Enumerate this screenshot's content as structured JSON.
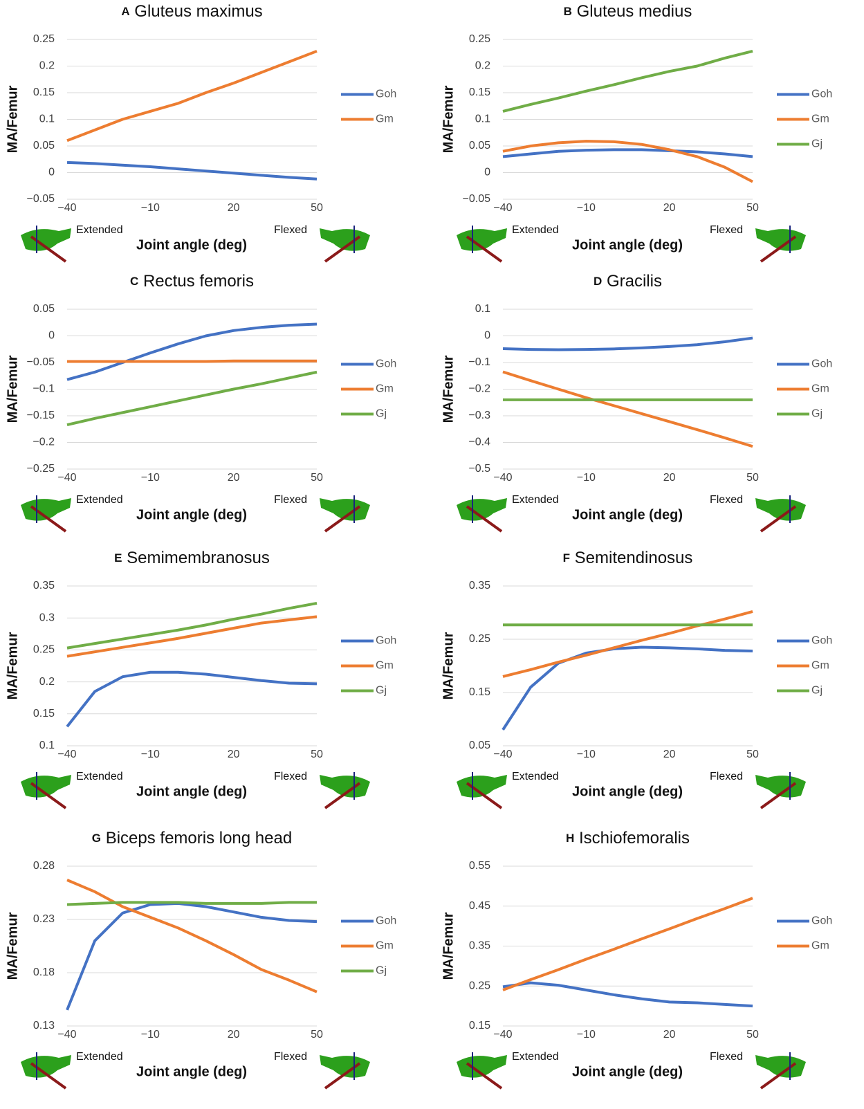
{
  "chart_data": [
    {
      "type": "line",
      "label": "A",
      "title": "Gluteus maximus",
      "xlabel": "Joint angle (deg)",
      "ylabel": "MA/Femur",
      "annotations": [
        "Extended",
        "Flexed"
      ],
      "grid": true,
      "x": [
        -40,
        -30,
        -20,
        -10,
        0,
        10,
        20,
        30,
        40,
        50
      ],
      "xlim": [
        -40,
        50
      ],
      "xticks": [
        {
          "value": -40,
          "label": "−40"
        },
        {
          "value": -10,
          "label": "−10"
        },
        20,
        50
      ],
      "ylim": [
        -0.05,
        0.25
      ],
      "yticks": [
        {
          "value": -0.05,
          "label": "−0.05"
        },
        0,
        0.05,
        0.1,
        0.15,
        0.2,
        0.25
      ],
      "series": [
        {
          "name": "Goh",
          "color": "#4472c4",
          "values": [
            0.019,
            0.017,
            0.014,
            0.011,
            0.007,
            0.003,
            -0.001,
            -0.005,
            -0.009,
            -0.012
          ]
        },
        {
          "name": "Gm",
          "color": "#ed7d31",
          "values": [
            0.06,
            0.08,
            0.1,
            0.115,
            0.13,
            0.15,
            0.168,
            0.188,
            0.208,
            0.228
          ]
        }
      ]
    },
    {
      "type": "line",
      "label": "B",
      "title": "Gluteus medius",
      "xlabel": "Joint angle (deg)",
      "ylabel": "MA/Femur",
      "annotations": [
        "Extended",
        "Flexed"
      ],
      "grid": true,
      "x": [
        -40,
        -30,
        -20,
        -10,
        0,
        10,
        20,
        30,
        40,
        50
      ],
      "xlim": [
        -40,
        50
      ],
      "xticks": [
        {
          "value": -40,
          "label": "−40"
        },
        {
          "value": -10,
          "label": "−10"
        },
        20,
        50
      ],
      "ylim": [
        -0.05,
        0.25
      ],
      "yticks": [
        {
          "value": -0.05,
          "label": "−0.05"
        },
        0,
        0.05,
        0.1,
        0.15,
        0.2,
        0.25
      ],
      "series": [
        {
          "name": "Goh",
          "color": "#4472c4",
          "values": [
            0.03,
            0.035,
            0.04,
            0.042,
            0.043,
            0.043,
            0.041,
            0.039,
            0.035,
            0.03
          ]
        },
        {
          "name": "Gm",
          "color": "#ed7d31",
          "values": [
            0.04,
            0.05,
            0.056,
            0.059,
            0.058,
            0.053,
            0.043,
            0.03,
            0.01,
            -0.017
          ]
        },
        {
          "name": "Gj",
          "color": "#70ad47",
          "values": [
            0.115,
            0.128,
            0.14,
            0.153,
            0.165,
            0.178,
            0.19,
            0.2,
            0.215,
            0.228
          ]
        }
      ]
    },
    {
      "type": "line",
      "label": "C",
      "title": "Rectus femoris",
      "xlabel": "Joint angle (deg)",
      "ylabel": "MA/Femur",
      "annotations": [
        "Extended",
        "Flexed"
      ],
      "grid": true,
      "x": [
        -40,
        -30,
        -20,
        -10,
        0,
        10,
        20,
        30,
        40,
        50
      ],
      "xlim": [
        -40,
        50
      ],
      "xticks": [
        {
          "value": -40,
          "label": "−40"
        },
        {
          "value": -10,
          "label": "−10"
        },
        20,
        50
      ],
      "ylim": [
        -0.25,
        0.05
      ],
      "yticks": [
        {
          "value": -0.25,
          "label": "−0.25"
        },
        {
          "value": -0.2,
          "label": "−0.2"
        },
        {
          "value": -0.15,
          "label": "−0.15"
        },
        {
          "value": -0.1,
          "label": "−0.1"
        },
        {
          "value": -0.05,
          "label": "−0.05"
        },
        0,
        0.05
      ],
      "series": [
        {
          "name": "Goh",
          "color": "#4472c4",
          "values": [
            -0.082,
            -0.068,
            -0.05,
            -0.032,
            -0.015,
            0.0,
            0.01,
            0.016,
            0.02,
            0.022
          ]
        },
        {
          "name": "Gm",
          "color": "#ed7d31",
          "values": [
            -0.048,
            -0.048,
            -0.048,
            -0.048,
            -0.048,
            -0.048,
            -0.047,
            -0.047,
            -0.047,
            -0.047
          ]
        },
        {
          "name": "Gj",
          "color": "#70ad47",
          "values": [
            -0.167,
            -0.155,
            -0.144,
            -0.133,
            -0.122,
            -0.111,
            -0.1,
            -0.09,
            -0.079,
            -0.068
          ]
        }
      ]
    },
    {
      "type": "line",
      "label": "D",
      "title": "Gracilis",
      "xlabel": "Joint angle (deg)",
      "ylabel": "MA/Femur",
      "annotations": [
        "Extended",
        "Flexed"
      ],
      "grid": true,
      "x": [
        -40,
        -30,
        -20,
        -10,
        0,
        10,
        20,
        30,
        40,
        50
      ],
      "xlim": [
        -40,
        50
      ],
      "xticks": [
        {
          "value": -40,
          "label": "−40"
        },
        {
          "value": -10,
          "label": "−10"
        },
        20,
        50
      ],
      "ylim": [
        -0.5,
        0.1
      ],
      "yticks": [
        {
          "value": -0.5,
          "label": "−0.5"
        },
        {
          "value": -0.4,
          "label": "−0.4"
        },
        {
          "value": -0.3,
          "label": "−0.3"
        },
        {
          "value": -0.2,
          "label": "−0.2"
        },
        {
          "value": -0.1,
          "label": "−0.1"
        },
        0,
        0.1
      ],
      "series": [
        {
          "name": "Goh",
          "color": "#4472c4",
          "values": [
            -0.048,
            -0.051,
            -0.052,
            -0.051,
            -0.049,
            -0.045,
            -0.04,
            -0.033,
            -0.022,
            -0.008
          ]
        },
        {
          "name": "Gm",
          "color": "#ed7d31",
          "values": [
            -0.135,
            -0.168,
            -0.2,
            -0.232,
            -0.262,
            -0.292,
            -0.322,
            -0.352,
            -0.383,
            -0.415
          ]
        },
        {
          "name": "Gj",
          "color": "#70ad47",
          "values": [
            -0.24,
            -0.24,
            -0.24,
            -0.24,
            -0.24,
            -0.24,
            -0.24,
            -0.24,
            -0.24,
            -0.24
          ]
        }
      ]
    },
    {
      "type": "line",
      "label": "E",
      "title": "Semimembranosus",
      "xlabel": "Joint angle (deg)",
      "ylabel": "MA/Femur",
      "annotations": [
        "Extended",
        "Flexed"
      ],
      "grid": true,
      "x": [
        -40,
        -30,
        -20,
        -10,
        0,
        10,
        20,
        30,
        40,
        50
      ],
      "xlim": [
        -40,
        50
      ],
      "xticks": [
        {
          "value": -40,
          "label": "−40"
        },
        {
          "value": -10,
          "label": "−10"
        },
        20,
        50
      ],
      "ylim": [
        0.1,
        0.35
      ],
      "yticks": [
        0.1,
        0.15,
        0.2,
        0.25,
        0.3,
        0.35
      ],
      "series": [
        {
          "name": "Goh",
          "color": "#4472c4",
          "values": [
            0.13,
            0.185,
            0.208,
            0.215,
            0.215,
            0.212,
            0.207,
            0.202,
            0.198,
            0.197
          ]
        },
        {
          "name": "Gm",
          "color": "#ed7d31",
          "values": [
            0.24,
            0.247,
            0.254,
            0.261,
            0.268,
            0.276,
            0.284,
            0.292,
            0.297,
            0.302
          ]
        },
        {
          "name": "Gj",
          "color": "#70ad47",
          "values": [
            0.253,
            0.26,
            0.267,
            0.274,
            0.281,
            0.289,
            0.298,
            0.306,
            0.315,
            0.323
          ]
        }
      ]
    },
    {
      "type": "line",
      "label": "F",
      "title": "Semitendinosus",
      "xlabel": "Joint angle (deg)",
      "ylabel": "MA/Femur",
      "annotations": [
        "Extended",
        "Flexed"
      ],
      "grid": true,
      "x": [
        -40,
        -30,
        -20,
        -10,
        0,
        10,
        20,
        30,
        40,
        50
      ],
      "xlim": [
        -40,
        50
      ],
      "xticks": [
        {
          "value": -40,
          "label": "−40"
        },
        {
          "value": -10,
          "label": "−10"
        },
        20,
        50
      ],
      "ylim": [
        0.05,
        0.35
      ],
      "yticks": [
        0.05,
        0.15,
        0.25,
        0.35
      ],
      "series": [
        {
          "name": "Goh",
          "color": "#4472c4",
          "values": [
            0.08,
            0.16,
            0.205,
            0.224,
            0.232,
            0.235,
            0.234,
            0.232,
            0.229,
            0.228
          ]
        },
        {
          "name": "Gm",
          "color": "#ed7d31",
          "values": [
            0.18,
            0.193,
            0.207,
            0.22,
            0.234,
            0.248,
            0.261,
            0.275,
            0.288,
            0.302
          ]
        },
        {
          "name": "Gj",
          "color": "#70ad47",
          "values": [
            0.277,
            0.277,
            0.277,
            0.277,
            0.277,
            0.277,
            0.277,
            0.277,
            0.277,
            0.277
          ]
        }
      ]
    },
    {
      "type": "line",
      "label": "G",
      "title": "Biceps femoris long head",
      "xlabel": "Joint angle (deg)",
      "ylabel": "MA/Femur",
      "annotations": [
        "Extended",
        "Flexed"
      ],
      "grid": true,
      "x": [
        -40,
        -30,
        -20,
        -10,
        0,
        10,
        20,
        30,
        40,
        50
      ],
      "xlim": [
        -40,
        50
      ],
      "xticks": [
        {
          "value": -40,
          "label": "−40"
        },
        {
          "value": -10,
          "label": "−10"
        },
        20,
        50
      ],
      "ylim": [
        0.13,
        0.28
      ],
      "yticks": [
        0.13,
        0.18,
        0.23,
        0.28
      ],
      "series": [
        {
          "name": "Goh",
          "color": "#4472c4",
          "values": [
            0.145,
            0.21,
            0.236,
            0.244,
            0.245,
            0.242,
            0.237,
            0.232,
            0.229,
            0.228
          ]
        },
        {
          "name": "Gm",
          "color": "#ed7d31",
          "values": [
            0.267,
            0.256,
            0.242,
            0.232,
            0.222,
            0.21,
            0.197,
            0.183,
            0.173,
            0.162
          ]
        },
        {
          "name": "Gj",
          "color": "#70ad47",
          "values": [
            0.244,
            0.245,
            0.246,
            0.246,
            0.246,
            0.245,
            0.245,
            0.245,
            0.246,
            0.246
          ]
        }
      ]
    },
    {
      "type": "line",
      "label": "H",
      "title": "Ischiofemoralis",
      "xlabel": "Joint angle (deg)",
      "ylabel": "MA/Femur",
      "annotations": [
        "Extended",
        "Flexed"
      ],
      "grid": true,
      "x": [
        -40,
        -30,
        -20,
        -10,
        0,
        10,
        20,
        30,
        40,
        50
      ],
      "xlim": [
        -40,
        50
      ],
      "xticks": [
        {
          "value": -40,
          "label": "−40"
        },
        {
          "value": -10,
          "label": "−10"
        },
        20,
        50
      ],
      "ylim": [
        0.15,
        0.55
      ],
      "yticks": [
        0.15,
        0.25,
        0.35,
        0.45,
        0.55
      ],
      "series": [
        {
          "name": "Goh",
          "color": "#4472c4",
          "values": [
            0.248,
            0.258,
            0.252,
            0.24,
            0.228,
            0.218,
            0.21,
            0.208,
            0.204,
            0.2
          ]
        },
        {
          "name": "Gm",
          "color": "#ed7d31",
          "values": [
            0.24,
            0.266,
            0.291,
            0.317,
            0.342,
            0.368,
            0.393,
            0.419,
            0.444,
            0.47
          ]
        }
      ]
    }
  ]
}
